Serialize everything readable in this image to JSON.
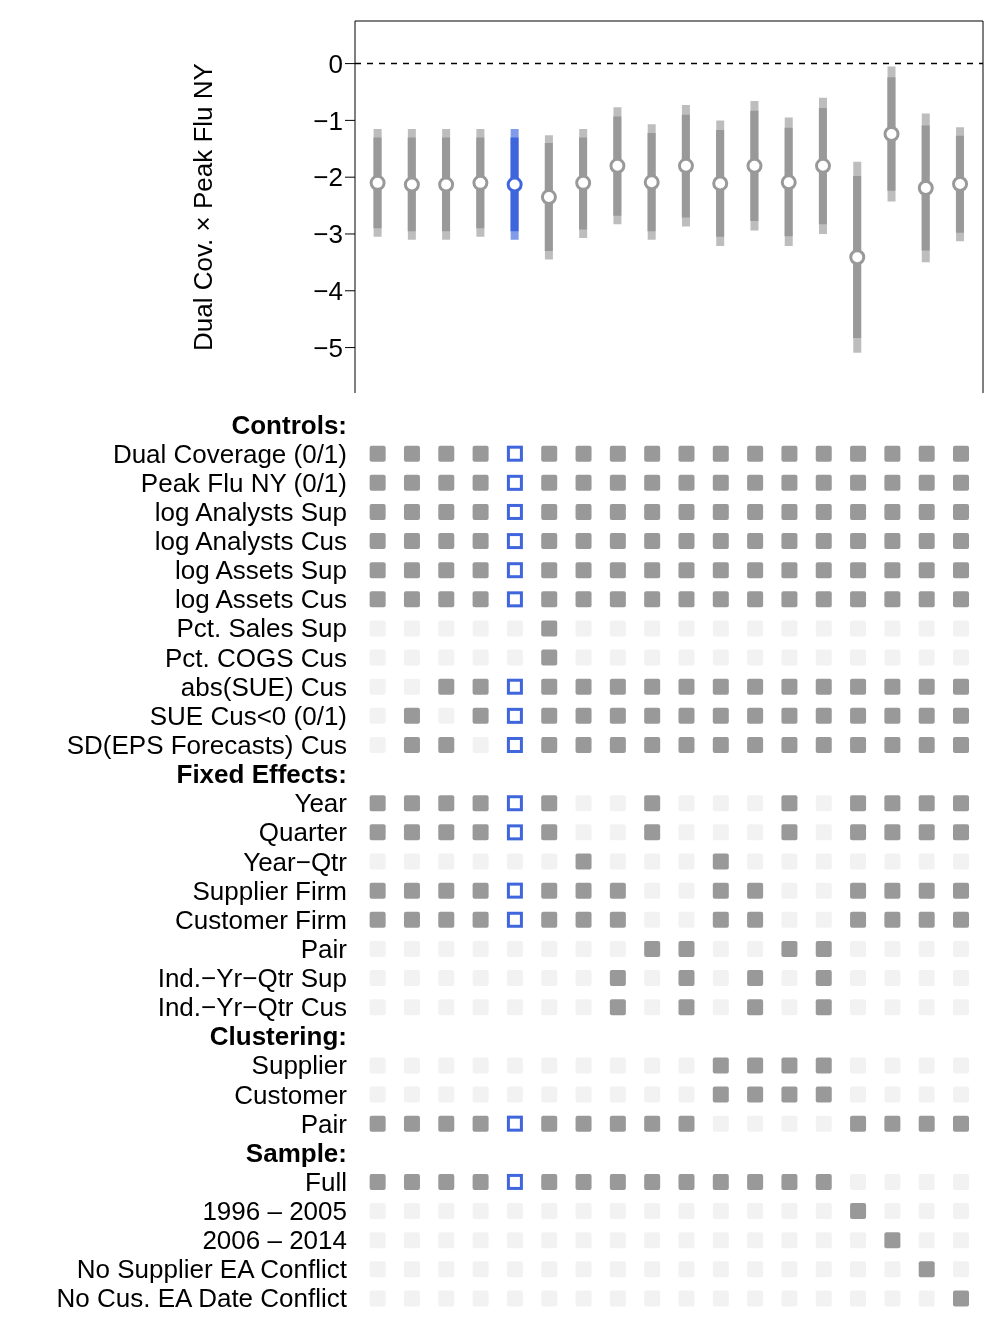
{
  "chart_data": [
    {
      "type": "box",
      "ylabel": "Dual Cov. × Peak Flu NY",
      "categories": [
        null,
        null,
        null,
        null,
        null,
        null,
        null,
        null,
        null,
        null,
        null,
        null,
        null,
        null,
        null,
        null,
        null,
        null
      ],
      "boxes": [
        {
          "low": -3.05,
          "q1": -2.9,
          "median": -2.1,
          "q3": -1.3,
          "high": -1.15
        },
        {
          "low": -3.1,
          "q1": -2.95,
          "median": -2.13,
          "q3": -1.3,
          "high": -1.15
        },
        {
          "low": -3.1,
          "q1": -2.95,
          "median": -2.13,
          "q3": -1.3,
          "high": -1.15
        },
        {
          "low": -3.05,
          "q1": -2.9,
          "median": -2.1,
          "q3": -1.3,
          "high": -1.15
        },
        {
          "low": -3.1,
          "q1": -2.95,
          "median": -2.13,
          "q3": -1.3,
          "high": -1.15
        },
        {
          "low": -3.45,
          "q1": -3.3,
          "median": -2.35,
          "q3": -1.4,
          "high": -1.26
        },
        {
          "low": -3.07,
          "q1": -2.92,
          "median": -2.1,
          "q3": -1.3,
          "high": -1.15
        },
        {
          "low": -2.83,
          "q1": -2.68,
          "median": -1.8,
          "q3": -0.93,
          "high": -0.77
        },
        {
          "low": -3.1,
          "q1": -2.95,
          "median": -2.09,
          "q3": -1.22,
          "high": -1.07
        },
        {
          "low": -2.87,
          "q1": -2.71,
          "median": -1.8,
          "q3": -0.9,
          "high": -0.73
        },
        {
          "low": -3.21,
          "q1": -3.05,
          "median": -2.11,
          "q3": -1.17,
          "high": -1.0
        },
        {
          "low": -2.94,
          "q1": -2.77,
          "median": -1.8,
          "q3": -0.83,
          "high": -0.66
        },
        {
          "low": -3.21,
          "q1": -3.04,
          "median": -2.09,
          "q3": -1.13,
          "high": -0.95
        },
        {
          "low": -3.0,
          "q1": -2.83,
          "median": -1.8,
          "q3": -0.78,
          "high": -0.6
        },
        {
          "low": -5.09,
          "q1": -4.83,
          "median": -3.41,
          "q3": -1.98,
          "high": -1.73
        },
        {
          "low": -2.43,
          "q1": -2.24,
          "median": -1.24,
          "q3": -0.24,
          "high": -0.05
        },
        {
          "low": -3.5,
          "q1": -3.29,
          "median": -2.19,
          "q3": -1.09,
          "high": -0.88
        },
        {
          "low": -3.13,
          "q1": -2.98,
          "median": -2.12,
          "q3": -1.27,
          "high": -1.12
        }
      ],
      "colors": [
        "#999999",
        "#999999",
        "#999999",
        "#999999",
        "#3f66dd",
        "#999999",
        "#999999",
        "#999999",
        "#999999",
        "#999999",
        "#999999",
        "#999999",
        "#999999",
        "#999999",
        "#999999",
        "#999999",
        "#999999",
        "#999999"
      ],
      "ylim": [
        -5.8,
        0.75
      ],
      "yticks": [
        0,
        -1,
        -2,
        -3,
        -4,
        -5
      ],
      "grid": false,
      "ref_lines": [
        {
          "axis": "y",
          "value": 0,
          "line_style": "dashed",
          "color": "#000000"
        }
      ]
    },
    {
      "type": "heatmap",
      "categories": [
        null,
        null,
        null,
        null,
        null,
        null,
        null,
        null,
        null,
        null,
        null,
        null,
        null,
        null,
        null,
        null,
        null,
        null
      ],
      "colors": [
        "#999999",
        "#999999",
        "#999999",
        "#999999",
        "#3f66dd",
        "#999999",
        "#999999",
        "#999999",
        "#999999",
        "#999999",
        "#999999",
        "#999999",
        "#999999",
        "#999999",
        "#999999",
        "#999999",
        "#999999",
        "#999999"
      ],
      "y_categories": [
        "Controls:",
        "Dual Coverage (0/1)",
        "Peak Flu NY (0/1)",
        "log Analysts Sup",
        "log Analysts Cus",
        "log Assets Sup",
        "log Assets Cus",
        "Pct. Sales Sup",
        "Pct. COGS Cus",
        "abs(SUE) Cus",
        "SUE Cus<0 (0/1)",
        "SD(EPS Forecasts) Cus",
        "Fixed Effects:",
        "Year",
        "Quarter",
        "Year−Qtr",
        "Supplier Firm",
        "Customer Firm",
        "Pair",
        "Ind.−Yr−Qtr Sup",
        "Ind.−Yr−Qtr Cus",
        "Clustering:",
        "Supplier",
        "Customer",
        "Pair",
        "Sample:",
        "Full",
        "1996 – 2005",
        "2006 – 2014",
        "No Supplier EA Conflict",
        "No Cus. EA Date Conflict"
      ],
      "cells": [
        [
          null,
          null,
          null,
          null,
          null,
          null,
          null,
          null,
          null,
          null,
          null,
          null,
          null,
          null,
          null,
          null,
          null,
          null
        ],
        [
          true,
          true,
          true,
          true,
          true,
          true,
          true,
          true,
          true,
          true,
          true,
          true,
          true,
          true,
          true,
          true,
          true,
          true
        ],
        [
          true,
          true,
          true,
          true,
          true,
          true,
          true,
          true,
          true,
          true,
          true,
          true,
          true,
          true,
          true,
          true,
          true,
          true
        ],
        [
          true,
          true,
          true,
          true,
          true,
          true,
          true,
          true,
          true,
          true,
          true,
          true,
          true,
          true,
          true,
          true,
          true,
          true
        ],
        [
          true,
          true,
          true,
          true,
          true,
          true,
          true,
          true,
          true,
          true,
          true,
          true,
          true,
          true,
          true,
          true,
          true,
          true
        ],
        [
          true,
          true,
          true,
          true,
          true,
          true,
          true,
          true,
          true,
          true,
          true,
          true,
          true,
          true,
          true,
          true,
          true,
          true
        ],
        [
          true,
          true,
          true,
          true,
          true,
          true,
          true,
          true,
          true,
          true,
          true,
          true,
          true,
          true,
          true,
          true,
          true,
          true
        ],
        [
          false,
          false,
          false,
          false,
          false,
          true,
          false,
          false,
          false,
          false,
          false,
          false,
          false,
          false,
          false,
          false,
          false,
          false
        ],
        [
          false,
          false,
          false,
          false,
          false,
          true,
          false,
          false,
          false,
          false,
          false,
          false,
          false,
          false,
          false,
          false,
          false,
          false
        ],
        [
          false,
          false,
          true,
          true,
          true,
          true,
          true,
          true,
          true,
          true,
          true,
          true,
          true,
          true,
          true,
          true,
          true,
          true
        ],
        [
          false,
          true,
          false,
          true,
          true,
          true,
          true,
          true,
          true,
          true,
          true,
          true,
          true,
          true,
          true,
          true,
          true,
          true
        ],
        [
          false,
          true,
          true,
          false,
          true,
          true,
          true,
          true,
          true,
          true,
          true,
          true,
          true,
          true,
          true,
          true,
          true,
          true
        ],
        [
          null,
          null,
          null,
          null,
          null,
          null,
          null,
          null,
          null,
          null,
          null,
          null,
          null,
          null,
          null,
          null,
          null,
          null
        ],
        [
          true,
          true,
          true,
          true,
          true,
          true,
          false,
          false,
          true,
          false,
          false,
          false,
          true,
          false,
          true,
          true,
          true,
          true
        ],
        [
          true,
          true,
          true,
          true,
          true,
          true,
          false,
          false,
          true,
          false,
          false,
          false,
          true,
          false,
          true,
          true,
          true,
          true
        ],
        [
          false,
          false,
          false,
          false,
          false,
          false,
          true,
          false,
          false,
          false,
          true,
          false,
          false,
          false,
          false,
          false,
          false,
          false
        ],
        [
          true,
          true,
          true,
          true,
          true,
          true,
          true,
          true,
          false,
          false,
          true,
          true,
          false,
          false,
          true,
          true,
          true,
          true
        ],
        [
          true,
          true,
          true,
          true,
          true,
          true,
          true,
          true,
          false,
          false,
          true,
          true,
          false,
          false,
          true,
          true,
          true,
          true
        ],
        [
          false,
          false,
          false,
          false,
          false,
          false,
          false,
          false,
          true,
          true,
          false,
          false,
          true,
          true,
          false,
          false,
          false,
          false
        ],
        [
          false,
          false,
          false,
          false,
          false,
          false,
          false,
          true,
          false,
          true,
          false,
          true,
          false,
          true,
          false,
          false,
          false,
          false
        ],
        [
          false,
          false,
          false,
          false,
          false,
          false,
          false,
          true,
          false,
          true,
          false,
          true,
          false,
          true,
          false,
          false,
          false,
          false
        ],
        [
          null,
          null,
          null,
          null,
          null,
          null,
          null,
          null,
          null,
          null,
          null,
          null,
          null,
          null,
          null,
          null,
          null,
          null
        ],
        [
          false,
          false,
          false,
          false,
          false,
          false,
          false,
          false,
          false,
          false,
          true,
          true,
          true,
          true,
          false,
          false,
          false,
          false
        ],
        [
          false,
          false,
          false,
          false,
          false,
          false,
          false,
          false,
          false,
          false,
          true,
          true,
          true,
          true,
          false,
          false,
          false,
          false
        ],
        [
          true,
          true,
          true,
          true,
          true,
          true,
          true,
          true,
          true,
          true,
          false,
          false,
          false,
          false,
          true,
          true,
          true,
          true
        ],
        [
          null,
          null,
          null,
          null,
          null,
          null,
          null,
          null,
          null,
          null,
          null,
          null,
          null,
          null,
          null,
          null,
          null,
          null
        ],
        [
          true,
          true,
          true,
          true,
          true,
          true,
          true,
          true,
          true,
          true,
          true,
          true,
          true,
          true,
          false,
          false,
          false,
          false
        ],
        [
          false,
          false,
          false,
          false,
          false,
          false,
          false,
          false,
          false,
          false,
          false,
          false,
          false,
          false,
          true,
          false,
          false,
          false
        ],
        [
          false,
          false,
          false,
          false,
          false,
          false,
          false,
          false,
          false,
          false,
          false,
          false,
          false,
          false,
          false,
          true,
          false,
          false
        ],
        [
          false,
          false,
          false,
          false,
          false,
          false,
          false,
          false,
          false,
          false,
          false,
          false,
          false,
          false,
          false,
          false,
          true,
          false
        ],
        [
          false,
          false,
          false,
          false,
          false,
          false,
          false,
          false,
          false,
          false,
          false,
          false,
          false,
          false,
          false,
          false,
          false,
          true
        ]
      ]
    }
  ]
}
